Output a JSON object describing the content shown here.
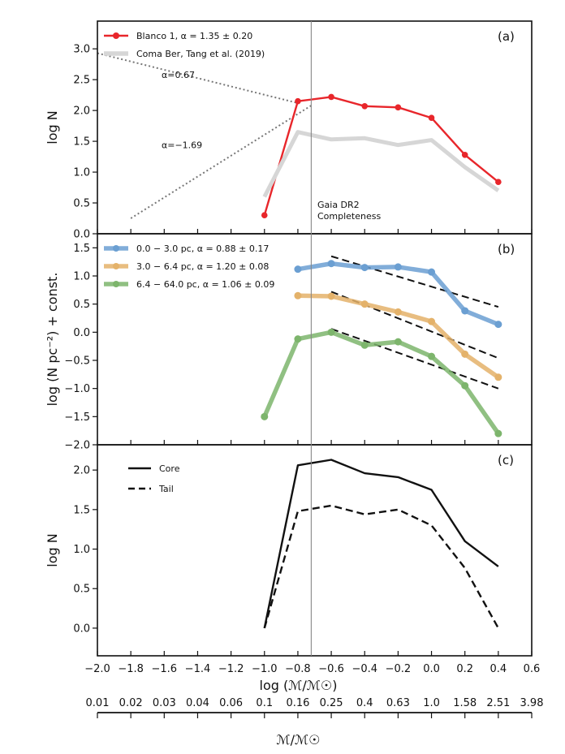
{
  "chart_data": [
    {
      "panel": "a",
      "type": "line",
      "panel_label": "(a)",
      "ylabel": "log N",
      "xlim": [
        -2.0,
        0.6
      ],
      "ylim": [
        0.0,
        3.45
      ],
      "yticks": [
        "0.0",
        "0.5",
        "1.0",
        "1.5",
        "2.0",
        "2.5",
        "3.0"
      ],
      "legend_position": "top-left",
      "series": [
        {
          "name": "Blanco 1, α = 1.35 ± 0.20",
          "color": "#e8262b",
          "x": [
            -1.0,
            -0.8,
            -0.6,
            -0.4,
            -0.2,
            0.0,
            0.2,
            0.4
          ],
          "values": [
            0.3,
            2.15,
            2.22,
            2.07,
            2.05,
            1.88,
            1.28,
            0.84
          ]
        },
        {
          "name": "Coma Ber, Tang et al. (2019)",
          "color": "#d6d6d6",
          "x": [
            -1.0,
            -0.8,
            -0.6,
            -0.4,
            -0.2,
            0.0,
            0.2,
            0.4
          ],
          "values": [
            0.6,
            1.65,
            1.53,
            1.55,
            1.44,
            1.52,
            1.08,
            0.7
          ]
        }
      ],
      "fit_lines": [
        {
          "label": "α=0.67",
          "x": [
            -2.0,
            -0.8
          ],
          "values": [
            2.93,
            2.12
          ]
        },
        {
          "label": "α=−1.69",
          "x": [
            -1.8,
            -0.72
          ],
          "values": [
            0.25,
            2.08
          ]
        }
      ],
      "completeness": {
        "label_line1": "Gaia DR2",
        "label_line2": "Completeness",
        "x": -0.72
      }
    },
    {
      "panel": "b",
      "type": "line",
      "panel_label": "(b)",
      "ylabel": "log (N pc⁻²) + const.",
      "xlim": [
        -2.0,
        0.6
      ],
      "ylim": [
        -2.0,
        1.75
      ],
      "yticks": [
        "−2.0",
        "−1.5",
        "−1.0",
        "−0.5",
        "0.0",
        "0.5",
        "1.0",
        "1.5"
      ],
      "legend_position": "top-left",
      "series": [
        {
          "name": "0.0 −   3.0 pc, α = 0.88 ± 0.17",
          "color": "#6b9fd2",
          "x": [
            -0.8,
            -0.6,
            -0.4,
            -0.2,
            0.0,
            0.2,
            0.4
          ],
          "values": [
            1.12,
            1.22,
            1.15,
            1.16,
            1.07,
            0.38,
            0.14
          ]
        },
        {
          "name": "3.0 −   6.4 pc, α = 1.20 ± 0.08",
          "color": "#e4b26a",
          "x": [
            -0.8,
            -0.6,
            -0.4,
            -0.2,
            0.0,
            0.2,
            0.4
          ],
          "values": [
            0.65,
            0.64,
            0.5,
            0.36,
            0.19,
            -0.39,
            -0.8
          ]
        },
        {
          "name": "6.4 − 64.0 pc, α = 1.06 ± 0.09",
          "color": "#7db56c",
          "x": [
            -1.0,
            -0.8,
            -0.6,
            -0.4,
            -0.2,
            0.0,
            0.2,
            0.4
          ],
          "values": [
            -1.5,
            -0.12,
            0.0,
            -0.23,
            -0.17,
            -0.43,
            -0.95,
            -1.8
          ]
        }
      ],
      "fit_lines": [
        {
          "x": [
            -0.6,
            0.4
          ],
          "values": [
            1.35,
            0.45
          ]
        },
        {
          "x": [
            -0.6,
            0.4
          ],
          "values": [
            0.72,
            -0.46
          ]
        },
        {
          "x": [
            -0.6,
            0.4
          ],
          "values": [
            0.06,
            -1.0
          ]
        }
      ]
    },
    {
      "panel": "c",
      "type": "line",
      "panel_label": "(c)",
      "ylabel": "log N",
      "xlabel": "log (ℳ/ℳ☉)",
      "xlim": [
        -2.0,
        0.6
      ],
      "ylim": [
        -0.35,
        2.32
      ],
      "xticks": [
        "−2.0",
        "−1.8",
        "−1.6",
        "−1.4",
        "−1.2",
        "−1.0",
        "−0.8",
        "−0.6",
        "−0.4",
        "−0.2",
        "0.0",
        "0.2",
        "0.4",
        "0.6"
      ],
      "yticks": [
        "0.0",
        "0.5",
        "1.0",
        "1.5",
        "2.0"
      ],
      "legend_position": "top-left",
      "series": [
        {
          "name": "Core",
          "style": "solid",
          "x": [
            -1.0,
            -0.8,
            -0.6,
            -0.4,
            -0.2,
            0.0,
            0.2,
            0.4
          ],
          "values": [
            0.0,
            2.06,
            2.13,
            1.96,
            1.91,
            1.75,
            1.1,
            0.78
          ]
        },
        {
          "name": "Tail",
          "style": "dashed",
          "x": [
            -1.0,
            -0.8,
            -0.6,
            -0.4,
            -0.2,
            0.0,
            0.2,
            0.4
          ],
          "values": [
            0.0,
            1.48,
            1.55,
            1.44,
            1.5,
            1.3,
            0.76,
            0.0
          ]
        }
      ]
    },
    {
      "panel": "secondary-axis",
      "type": "axis",
      "xlabel": "ℳ/ℳ☉",
      "ticks": [
        "0.01",
        "0.02",
        "0.03",
        "0.04",
        "0.06",
        "0.1",
        "0.16",
        "0.25",
        "0.4",
        "0.63",
        "1.0",
        "1.58",
        "2.51",
        "3.98"
      ]
    }
  ]
}
